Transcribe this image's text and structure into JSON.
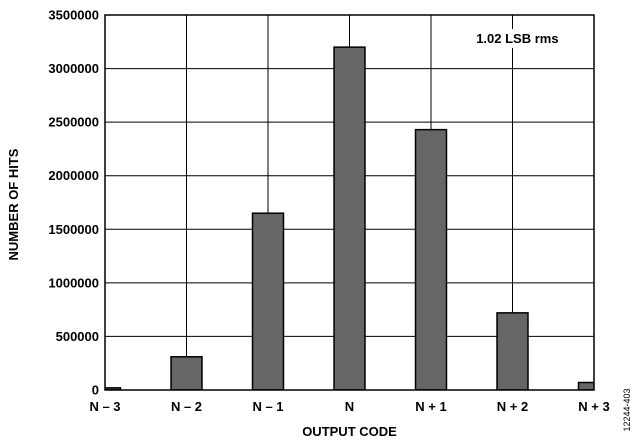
{
  "figure_id": "12244-403",
  "chart_data": {
    "type": "bar",
    "categories": [
      "N – 3",
      "N – 2",
      "N – 1",
      "N",
      "N + 1",
      "N + 2",
      "N + 3"
    ],
    "values": [
      20000,
      310000,
      1650000,
      3200000,
      2430000,
      720000,
      70000
    ],
    "xlabel": "OUTPUT CODE",
    "ylabel": "NUMBER OF HITS",
    "ylim": [
      0,
      3500000
    ],
    "yticks": [
      0,
      500000,
      1000000,
      1500000,
      2000000,
      2500000,
      3000000,
      3500000
    ],
    "ytick_labels": [
      "0",
      "500000",
      "1000000",
      "1500000",
      "2000000",
      "2500000",
      "3000000",
      "3500000"
    ],
    "annotation": "1.02 LSB rms",
    "annotation_position": "top-right",
    "grid": true,
    "bar_color": "#666666"
  }
}
